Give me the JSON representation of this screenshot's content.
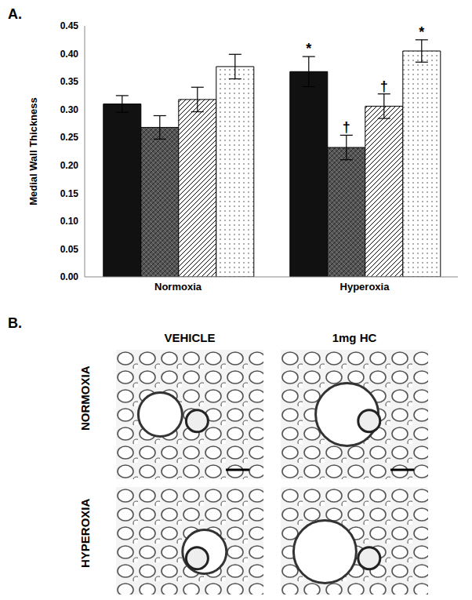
{
  "chart_data": {
    "type": "bar",
    "categories": [
      "Normoxia",
      "Hyperoxia"
    ],
    "y_label": "Medial Wall Thickness",
    "ylim": [
      0,
      0.45
    ],
    "yticks": [
      {
        "value": 0,
        "label": "0.00"
      },
      {
        "value": 0.05,
        "label": "0.05"
      },
      {
        "value": 0.1,
        "label": "0.10"
      },
      {
        "value": 0.15,
        "label": "0.15"
      },
      {
        "value": 0.2,
        "label": "0.20"
      },
      {
        "value": 0.25,
        "label": "0.25"
      },
      {
        "value": 0.3,
        "label": "0.30"
      },
      {
        "value": 0.35,
        "label": "0.35"
      },
      {
        "value": 0.4,
        "label": "0.40"
      },
      {
        "value": 0.45,
        "label": "0.45"
      }
    ],
    "series": [
      {
        "color": "#111111",
        "values": [
          0.31,
          0.368
        ],
        "errors": [
          0.015,
          0.027
        ]
      },
      {
        "color": "#555555",
        "values": [
          0.268,
          0.232
        ],
        "errors": [
          0.021,
          0.022
        ]
      },
      {
        "color": "#ffffff",
        "values": [
          0.318,
          0.306
        ],
        "errors": [
          0.022,
          0.022
        ]
      },
      {
        "color": "#ffffff",
        "values": [
          0.377,
          0.405
        ],
        "errors": [
          0.022,
          0.02
        ]
      }
    ],
    "annotations": [
      {
        "series": 0,
        "category": "Hyperoxia",
        "text": "*"
      },
      {
        "series": 1,
        "category": "Hyperoxia",
        "text": "†"
      },
      {
        "series": 2,
        "category": "Hyperoxia",
        "text": "†"
      },
      {
        "series": 3,
        "category": "Hyperoxia",
        "text": "*"
      }
    ]
  },
  "panel_a": {
    "label": "A."
  },
  "panel_b": {
    "label": "B.",
    "columns": [
      "VEHICLE",
      "1mg HC"
    ],
    "rows": [
      "NORMOXIA",
      "HYPEROXIA"
    ]
  }
}
